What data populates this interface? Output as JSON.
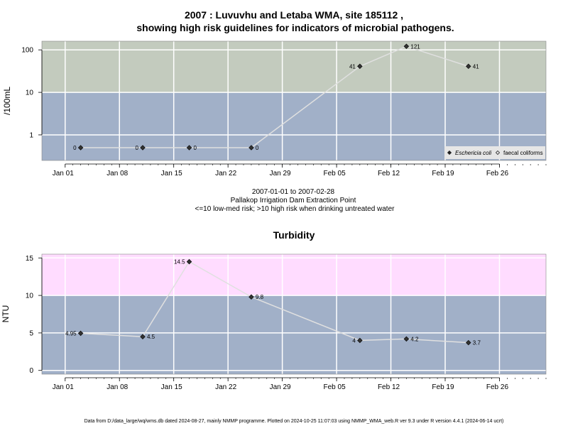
{
  "chart_data": [
    {
      "type": "line",
      "title_line1": "2007 : Luvuvhu and Letaba WMA, site 185112 ,",
      "title_line2": "showing high risk guidelines for indicators of microbial pathogens.",
      "ylabel": "/100mL",
      "y_scale": "log",
      "ylim": [
        0.25,
        160
      ],
      "y_ticks": [
        1,
        10,
        100
      ],
      "y_tick_labels": [
        "1",
        "10",
        "100"
      ],
      "high_risk_threshold": 10,
      "x_ticks": [
        "2007-01-01",
        "2007-01-08",
        "2007-01-15",
        "2007-01-22",
        "2007-01-29",
        "2007-02-05",
        "2007-02-12",
        "2007-02-19",
        "2007-02-26"
      ],
      "x_tick_labels": [
        "Jan 01",
        "Jan 08",
        "Jan 15",
        "Jan 22",
        "Jan 29",
        "Feb 05",
        "Feb 12",
        "Feb 19",
        "Feb 26"
      ],
      "x_range": [
        "2006-12-29",
        "2007-03-04"
      ],
      "series": [
        {
          "name": "Eschericia coli",
          "points": [
            {
              "x": "2007-01-03",
              "y": 0.5,
              "label": "0",
              "label_side": "left"
            },
            {
              "x": "2007-01-11",
              "y": 0.5,
              "label": "0",
              "label_side": "left"
            },
            {
              "x": "2007-01-17",
              "y": 0.5,
              "label": "0",
              "label_side": "right"
            },
            {
              "x": "2007-01-25",
              "y": 0.5,
              "label": "0",
              "label_side": "right"
            },
            {
              "x": "2007-02-08",
              "y": 41,
              "label": "41",
              "label_side": "left"
            },
            {
              "x": "2007-02-14",
              "y": 121,
              "label": "121",
              "label_side": "right"
            },
            {
              "x": "2007-02-22",
              "y": 41,
              "label": "41",
              "label_side": "right"
            }
          ]
        }
      ],
      "legend": {
        "position": "bottom-right",
        "items": [
          {
            "name": "Eschericia coli",
            "italic": true,
            "marker": "filled-diamond"
          },
          {
            "name": "faecal coliforms",
            "italic": false,
            "marker": "open-diamond"
          }
        ]
      },
      "caption": [
        "2007-01-01 to 2007-02-28",
        "Pallakop Irrigation Dam Extraction Point",
        "<=10 low-med risk; >10 high risk when drinking untreated water"
      ],
      "colors": {
        "high_band": "#c3cbbe",
        "low_band": "#a1b0c8",
        "line": "#e0e0e0",
        "grid": "#ffffff"
      }
    },
    {
      "type": "line",
      "title": "Turbidity",
      "ylabel": "NTU",
      "y_scale": "linear",
      "ylim": [
        -0.5,
        15.5
      ],
      "y_ticks": [
        0,
        5,
        10,
        15
      ],
      "y_tick_labels": [
        "0",
        "5",
        "10",
        "15"
      ],
      "high_risk_threshold": 10,
      "x_ticks": [
        "2007-01-01",
        "2007-01-08",
        "2007-01-15",
        "2007-01-22",
        "2007-01-29",
        "2007-02-05",
        "2007-02-12",
        "2007-02-19",
        "2007-02-26"
      ],
      "x_tick_labels": [
        "Jan 01",
        "Jan 08",
        "Jan 15",
        "Jan 22",
        "Jan 29",
        "Feb 05",
        "Feb 12",
        "Feb 19",
        "Feb 26"
      ],
      "x_range": [
        "2006-12-29",
        "2007-03-04"
      ],
      "series": [
        {
          "points": [
            {
              "x": "2007-01-03",
              "y": 4.95,
              "label": "4.95",
              "label_side": "left"
            },
            {
              "x": "2007-01-11",
              "y": 4.5,
              "label": "4.5",
              "label_side": "right"
            },
            {
              "x": "2007-01-17",
              "y": 14.5,
              "label": "14.5",
              "label_side": "left"
            },
            {
              "x": "2007-01-25",
              "y": 9.8,
              "label": "9.8",
              "label_side": "right"
            },
            {
              "x": "2007-02-08",
              "y": 4,
              "label": "4",
              "label_side": "left"
            },
            {
              "x": "2007-02-14",
              "y": 4.2,
              "label": "4.2",
              "label_side": "right"
            },
            {
              "x": "2007-02-22",
              "y": 3.7,
              "label": "3.7",
              "label_side": "right"
            }
          ]
        }
      ],
      "colors": {
        "high_band": "#ffdcff",
        "low_band": "#a1b0c8",
        "line": "#e0e0e0",
        "grid": "#ffffff"
      }
    }
  ],
  "footer": "Data from D:/data_large/wq/wms.db dated 2024-08-27, mainly NMMP programme. Plotted on 2024-10-25 11:07:03 using NMMP_WMA_web.R ver 9.3 under R version 4.4.1 (2024-06-14 ucrt)"
}
